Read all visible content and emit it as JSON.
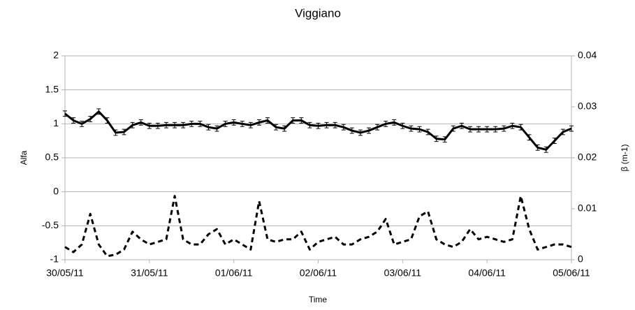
{
  "chart_data": {
    "type": "line",
    "title": "Viggiano",
    "xlabel": "Time",
    "ylabel": "Alfa",
    "y2label": "β (m-1)",
    "x": [
      0,
      0.1,
      0.2,
      0.3,
      0.4,
      0.5,
      0.6,
      0.7,
      0.8,
      0.9,
      1,
      1.1,
      1.2,
      1.3,
      1.4,
      1.5,
      1.6,
      1.7,
      1.8,
      1.9,
      2,
      2.1,
      2.2,
      2.3,
      2.4,
      2.5,
      2.6,
      2.7,
      2.8,
      2.9,
      3,
      3.1,
      3.2,
      3.3,
      3.4,
      3.5,
      3.6,
      3.7,
      3.8,
      3.9,
      4,
      4.1,
      4.2,
      4.3,
      4.4,
      4.5,
      4.6,
      4.7,
      4.8,
      4.9,
      5,
      5.1,
      5.2,
      5.3,
      5.4,
      5.5,
      5.6,
      5.7,
      5.8,
      5.9,
      6
    ],
    "xlim": [
      0,
      6
    ],
    "xticks": [
      {
        "value": 0,
        "label": "30/05/11"
      },
      {
        "value": 1,
        "label": "31/05/11"
      },
      {
        "value": 2,
        "label": "01/06/11"
      },
      {
        "value": 3,
        "label": "02/06/11"
      },
      {
        "value": 4,
        "label": "03/06/11"
      },
      {
        "value": 5,
        "label": "04/06/11"
      },
      {
        "value": 6,
        "label": "05/06/11"
      }
    ],
    "ylim": [
      -1,
      2
    ],
    "yticks": [
      {
        "value": -1,
        "label": "-1"
      },
      {
        "value": -0.5,
        "label": "-0.5"
      },
      0,
      0.5,
      1,
      1.5,
      2
    ],
    "y2lim": [
      0,
      0.04
    ],
    "y2ticks": [
      0,
      0.01,
      0.02,
      0.03,
      0.04
    ],
    "grid": true,
    "series": [
      {
        "color": "#000000",
        "dash": false,
        "error": 0.04,
        "values": [
          1.15,
          1.05,
          1.0,
          1.07,
          1.18,
          1.05,
          0.87,
          0.88,
          0.98,
          1.02,
          0.97,
          0.97,
          0.98,
          0.98,
          0.98,
          1.0,
          1.0,
          0.95,
          0.93,
          1.0,
          1.02,
          1.0,
          0.98,
          1.02,
          1.05,
          0.95,
          0.93,
          1.05,
          1.05,
          0.98,
          0.97,
          0.98,
          0.98,
          0.95,
          0.9,
          0.87,
          0.9,
          0.95,
          1.0,
          1.02,
          0.97,
          0.93,
          0.92,
          0.88,
          0.78,
          0.77,
          0.93,
          0.97,
          0.92,
          0.92,
          0.92,
          0.92,
          0.93,
          0.97,
          0.95,
          0.8,
          0.65,
          0.62,
          0.75,
          0.88,
          0.93
        ]
      },
      {
        "color": "#000000",
        "dash": true,
        "axis": "y2",
        "values": [
          0.0025,
          0.0015,
          0.003,
          0.009,
          0.003,
          0.0007,
          0.001,
          0.002,
          0.0055,
          0.004,
          0.003,
          0.0035,
          0.004,
          0.0125,
          0.004,
          0.003,
          0.003,
          0.005,
          0.006,
          0.003,
          0.004,
          0.003,
          0.002,
          0.0115,
          0.004,
          0.0035,
          0.004,
          0.004,
          0.0055,
          0.002,
          0.0035,
          0.004,
          0.0045,
          0.003,
          0.003,
          0.004,
          0.0045,
          0.0055,
          0.008,
          0.003,
          0.0035,
          0.004,
          0.0085,
          0.0095,
          0.004,
          0.003,
          0.0025,
          0.0035,
          0.006,
          0.004,
          0.0045,
          0.004,
          0.0035,
          0.004,
          0.0125,
          0.006,
          0.002,
          0.0025,
          0.003,
          0.003,
          0.0025
        ]
      }
    ]
  }
}
